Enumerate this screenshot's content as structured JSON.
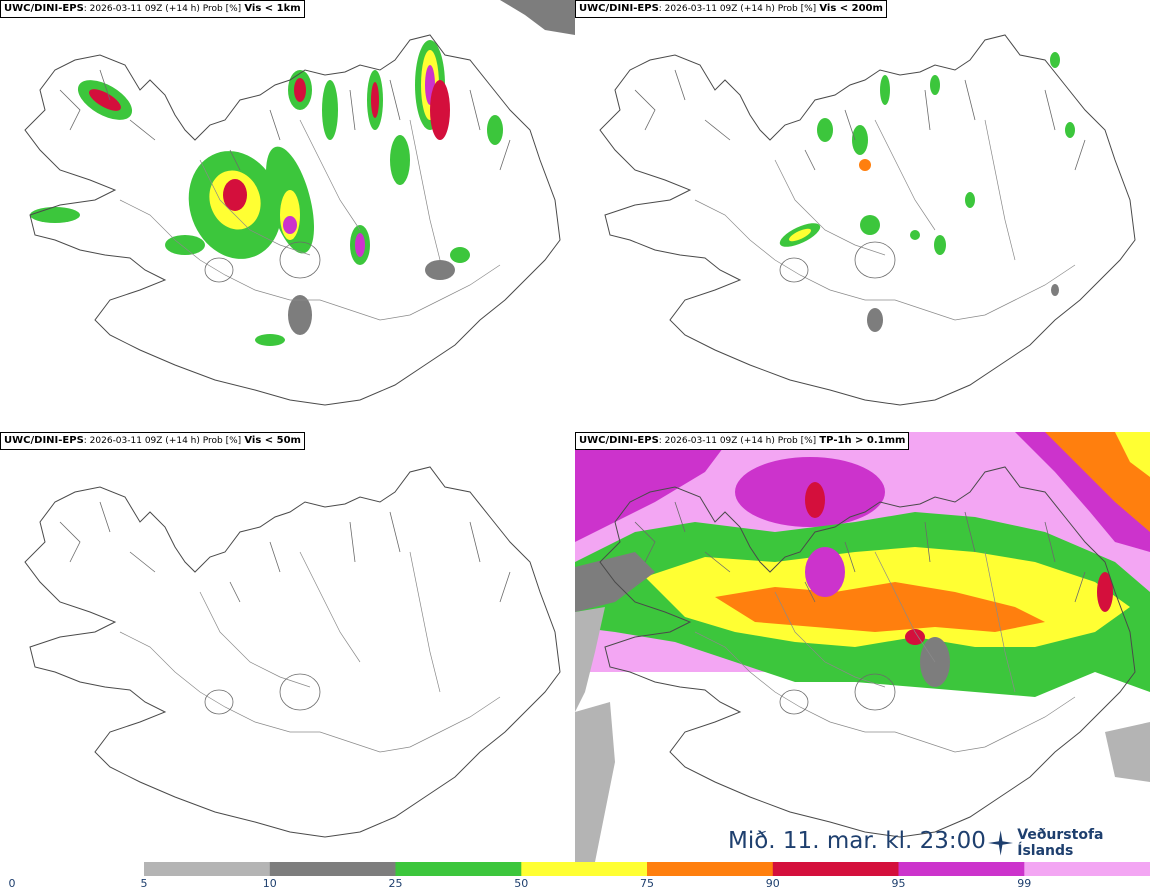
{
  "panels": [
    {
      "model": "UWC/DINI-EPS",
      "meta": ": 2026-03-11 09Z (+14 h) Prob [%]",
      "variable": "Vis < 1km"
    },
    {
      "model": "UWC/DINI-EPS",
      "meta": ": 2026-03-11 09Z (+14 h) Prob [%]",
      "variable": "Vis < 200m"
    },
    {
      "model": "UWC/DINI-EPS",
      "meta": ": 2026-03-11 09Z (+14 h) Prob [%]",
      "variable": "Vis < 50m"
    },
    {
      "model": "UWC/DINI-EPS",
      "meta": ": 2026-03-11 09Z (+14 h) Prob [%]",
      "variable": "TP-1h > 0.1mm"
    }
  ],
  "footer": {
    "timestamp": "Mið. 11. mar. kl. 23:00",
    "logo_text": "Veðurstofa Íslands"
  },
  "colorbar": {
    "ticks": [
      "0",
      "5",
      "10",
      "25",
      "50",
      "75",
      "90",
      "95",
      "99"
    ],
    "bins": [
      {
        "from": 5,
        "to": 10,
        "color": "#b4b4b4"
      },
      {
        "from": 10,
        "to": 25,
        "color": "#7d7d7d"
      },
      {
        "from": 25,
        "to": 50,
        "color": "#3cc63c"
      },
      {
        "from": 50,
        "to": 75,
        "color": "#ffff33"
      },
      {
        "from": 75,
        "to": 90,
        "color": "#ff7f0e"
      },
      {
        "from": 90,
        "to": 95,
        "color": "#d40f3c"
      },
      {
        "from": 95,
        "to": 99,
        "color": "#cc33cc"
      },
      {
        "from": 99,
        "to": 100,
        "color": "#f3a6f3"
      }
    ]
  }
}
